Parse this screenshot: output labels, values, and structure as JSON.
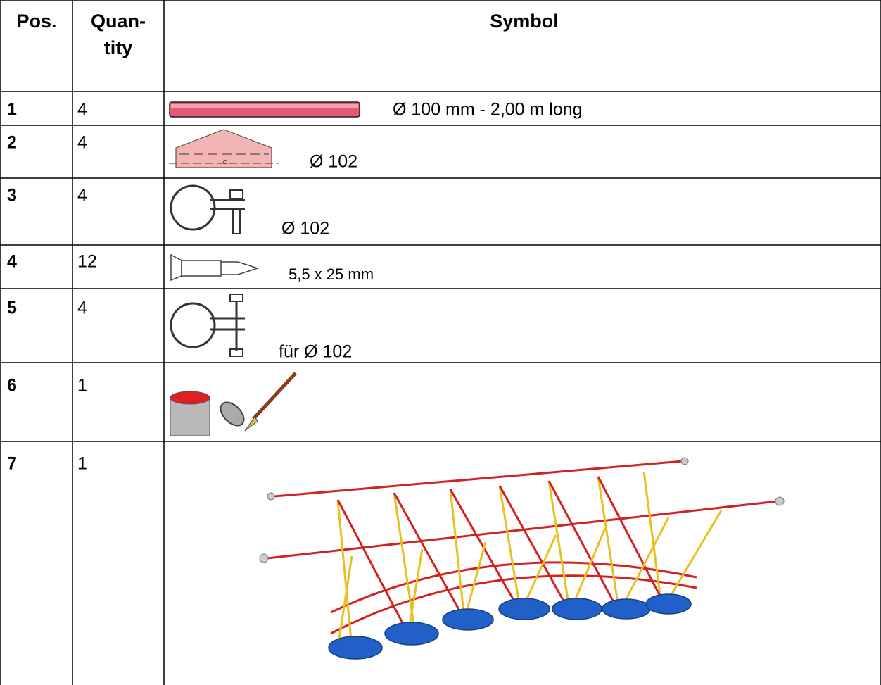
{
  "header": {
    "pos": "Pos.",
    "quantity_lines": [
      "Quan-",
      "tity"
    ],
    "symbol": "Symbol"
  },
  "rows": [
    {
      "pos": "1",
      "quantity": "4",
      "label": "Ø 100 mm - 2,00 m long"
    },
    {
      "pos": "2",
      "quantity": "4",
      "label": "Ø 102"
    },
    {
      "pos": "3",
      "quantity": "4",
      "label": "Ø 102"
    },
    {
      "pos": "4",
      "quantity": "12",
      "label": "5,5 x 25 mm"
    },
    {
      "pos": "5",
      "quantity": "4",
      "label": "für Ø 102"
    },
    {
      "pos": "6",
      "quantity": "1"
    },
    {
      "pos": "7",
      "quantity": "1"
    }
  ]
}
